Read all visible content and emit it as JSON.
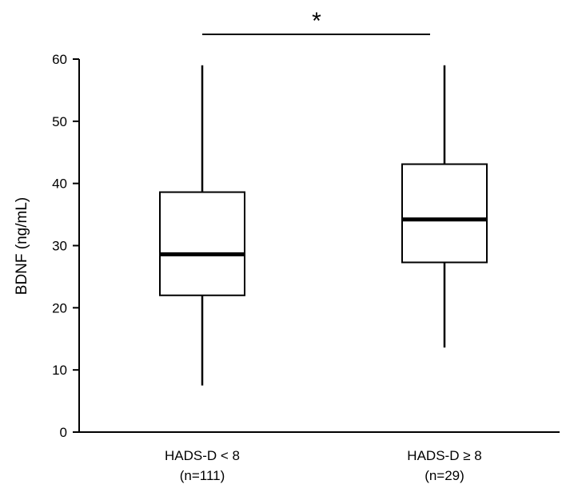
{
  "chart_data": {
    "type": "box",
    "ylabel": "BDNF (ng/mL)",
    "ylim": [
      0,
      60
    ],
    "yticks": [
      0,
      10,
      20,
      30,
      40,
      50,
      60
    ],
    "categories": [
      {
        "line1": "HADS-D < 8",
        "line2": "(n=111)"
      },
      {
        "line1": "HADS-D ≥ 8",
        "line2": "(n=29)"
      }
    ],
    "boxes": [
      {
        "whisker_low": 7.5,
        "q1": 22,
        "median": 28.6,
        "q3": 38.6,
        "whisker_high": 59
      },
      {
        "whisker_low": 13.6,
        "q1": 27.3,
        "median": 34.2,
        "q3": 43.1,
        "whisker_high": 59
      }
    ],
    "significance": {
      "label": "*",
      "between": [
        0,
        1
      ]
    },
    "grid": false,
    "line_color": "#000000",
    "box_fill": "#ffffff"
  }
}
